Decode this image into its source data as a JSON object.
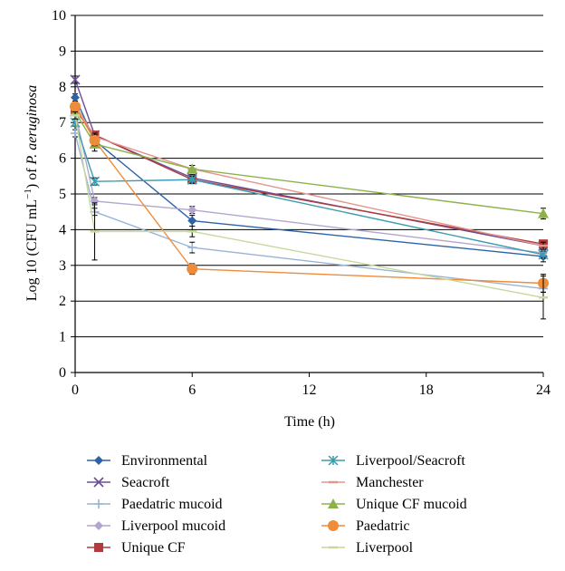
{
  "chart_data": {
    "type": "line",
    "xlabel": "Time (h)",
    "ylabel_parts": [
      "Log 10 (CFU mL",
      "−1",
      ") of ",
      "P. aeruginosa"
    ],
    "xlim": [
      0,
      24
    ],
    "ylim": [
      0,
      10
    ],
    "x_ticks": [
      0,
      6,
      12,
      18,
      24
    ],
    "y_ticks": [
      0,
      1,
      2,
      3,
      4,
      5,
      6,
      7,
      8,
      9,
      10
    ],
    "grid": "horizontal",
    "legend_position": "bottom",
    "x": [
      0,
      1,
      6,
      24
    ],
    "series": [
      {
        "name": "Environmental",
        "color": "#2d63a6",
        "marker": "diamond",
        "values": [
          7.7,
          6.5,
          4.25,
          3.25
        ],
        "errors": [
          0.1,
          0.1,
          0.15,
          0.15
        ]
      },
      {
        "name": "Seacroft",
        "color": "#6a4e9a",
        "marker": "x",
        "values": [
          8.2,
          6.65,
          5.45,
          3.55
        ],
        "errors": [
          0.1,
          0.1,
          0.1,
          0.1
        ]
      },
      {
        "name": "Paedatric mucoid",
        "color": "#98b4d4",
        "marker": "plus",
        "values": [
          6.7,
          4.5,
          3.5,
          2.35
        ],
        "errors": [
          0.1,
          0.1,
          0.15,
          0.1
        ]
      },
      {
        "name": "Liverpool mucoid",
        "color": "#b2a6ce",
        "marker": "diamond",
        "values": [
          7.3,
          4.8,
          4.55,
          3.35
        ],
        "errors": [
          0.1,
          0.1,
          0.1,
          0.1
        ]
      },
      {
        "name": "Unique CF",
        "color": "#b13b3d",
        "marker": "square",
        "values": [
          7.35,
          6.65,
          5.4,
          3.6
        ],
        "errors": [
          0.1,
          0.1,
          0.1,
          0.1
        ]
      },
      {
        "name": "Liverpool/Seacroft",
        "color": "#3b9cae",
        "marker": "asterisk",
        "values": [
          7.0,
          5.35,
          5.4,
          3.3
        ],
        "errors": [
          0.1,
          0.1,
          0.1,
          0.1
        ]
      },
      {
        "name": "Manchester",
        "color": "#e4958e",
        "marker": "dash",
        "values": [
          7.5,
          6.6,
          5.7,
          3.55
        ],
        "errors": [
          0.1,
          0.1,
          0.1,
          0.1
        ]
      },
      {
        "name": "Unique CF mucoid",
        "color": "#8db24a",
        "marker": "triangle",
        "values": [
          7.3,
          6.4,
          5.7,
          4.45
        ],
        "errors": [
          0.1,
          0.2,
          0.1,
          0.15
        ]
      },
      {
        "name": "Paedatric",
        "color": "#ef8c3a",
        "marker": "circle",
        "values": [
          7.45,
          6.5,
          2.9,
          2.5
        ],
        "errors": [
          0.1,
          0.15,
          0.15,
          0.25
        ]
      },
      {
        "name": "Liverpool",
        "color": "#c6d89a",
        "marker": "dash",
        "values": [
          7.2,
          3.95,
          3.95,
          2.1
        ],
        "errors": [
          0.1,
          0.8,
          0.15,
          0.6
        ]
      }
    ]
  }
}
